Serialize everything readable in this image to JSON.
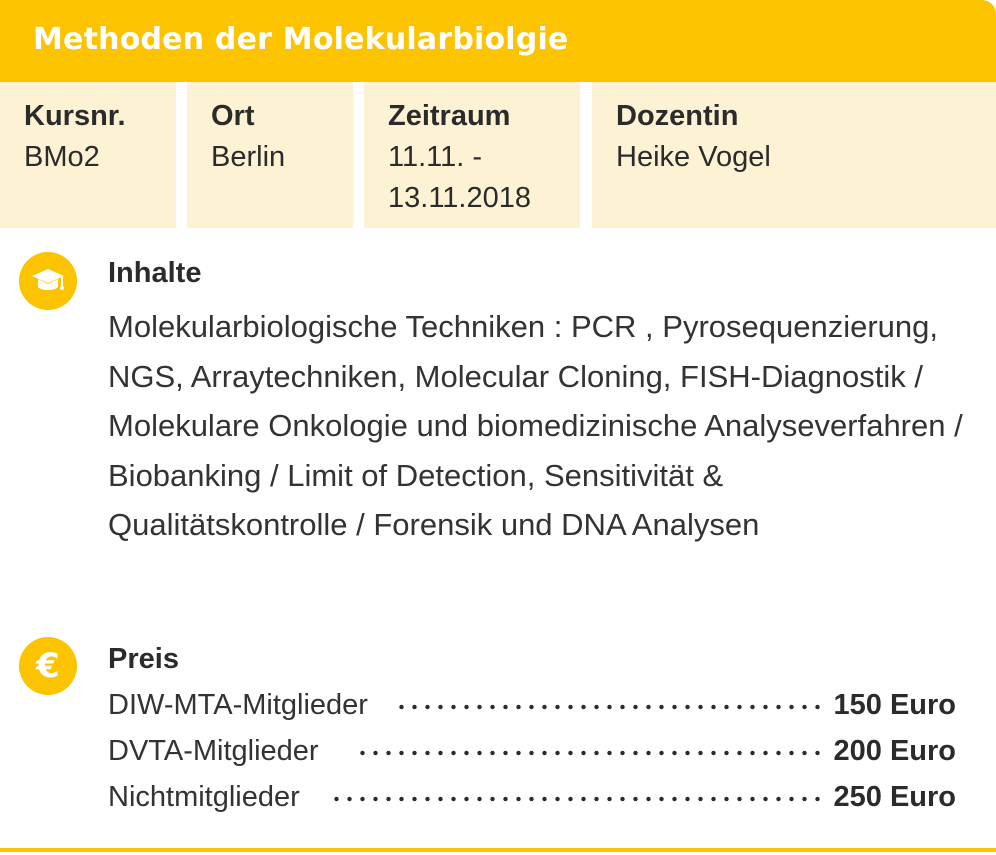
{
  "header": {
    "title": "Methoden der Molekularbiolgie"
  },
  "info": [
    {
      "label": "Kursnr.",
      "value": "BMo2"
    },
    {
      "label": "Ort",
      "value": "Berlin"
    },
    {
      "label": "Zeitraum",
      "value": "11.11. -\n13.11.2018"
    },
    {
      "label": "Dozentin",
      "value": "Heike Vogel"
    }
  ],
  "contents": {
    "icon": "graduation-cap-icon",
    "heading": "Inhalte",
    "text": "Molekularbiologische Techniken : PCR , Pyrosequenzierung, NGS, Arraytechniken, Molecular Cloning, FISH-Diagnostik  /  Molekulare Onkologie und biomedizinische Analyseverfahren  /  Biobanking  /  Limit of Detection, Sensitivität & Qualitätskontrolle  /  Forensik und DNA Analysen"
  },
  "price": {
    "icon": "euro-icon",
    "icon_glyph": "€",
    "heading": "Preis",
    "rows": [
      {
        "label": "DIW-MTA-Mitglieder",
        "amount": "150 Euro"
      },
      {
        "label": "DVTA-Mitglieder",
        "amount": "200 Euro"
      },
      {
        "label": "Nichtmitglieder",
        "amount": "250 Euro"
      }
    ]
  },
  "colors": {
    "accent": "#fcc300",
    "cell_background": "#fef2d4",
    "text": "#2b2b2b"
  }
}
